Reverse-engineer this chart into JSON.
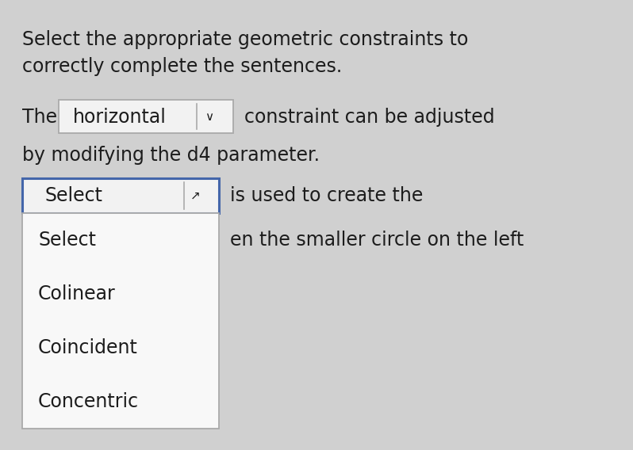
{
  "bg_color": "#d0d0d0",
  "title_text_line1": "Select the appropriate geometric constraints to",
  "title_text_line2": "correctly complete the sentences.",
  "body_text_pre_the": "The",
  "body_text_horizontal": "horizontal",
  "body_text_post": "constraint can be adjusted",
  "body_text_line2": "by modifying the d4 parameter.",
  "dropdown_selected": "Select",
  "text_after_select_line1": "is used to create the",
  "text_after_select_line2": "en the smaller circle on the left",
  "dropdown_items": [
    "Select",
    "Colinear",
    "Coincident",
    "Concentric"
  ],
  "text_color": "#1c1c1c",
  "box_border_color": "#aaaaaa",
  "dropdown_border_color": "#4466aa",
  "list_bg_color": "#f8f8f8",
  "selected_box_bg": "#f2f2f2",
  "horiz_box_bg": "#f2f2f2",
  "fontsize": 17
}
